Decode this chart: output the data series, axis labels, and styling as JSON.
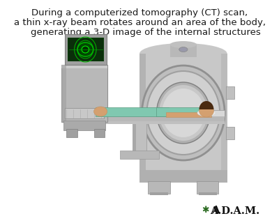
{
  "background_color": "#ffffff",
  "title_lines": [
    "During a computerized tomography (CT) scan,",
    "a thin x-ray beam rotates around an area of the body,",
    "    generating a 3-D image of the internal structures"
  ],
  "title_fontsize": 9.5,
  "title_color": "#1a1a1a",
  "adam_fontsize": 10,
  "fig_width": 4.0,
  "fig_height": 3.2,
  "dpi": 100,
  "gantry_color": "#c8c8c8",
  "gantry_dark": "#a0a0a0",
  "gantry_light": "#e0e0e0",
  "table_color": "#d0d0d0",
  "console_color": "#b0b0b0",
  "screen_color": "#1a4a1a",
  "patient_skin": "#d4a070",
  "patient_gown": "#80c8b0"
}
